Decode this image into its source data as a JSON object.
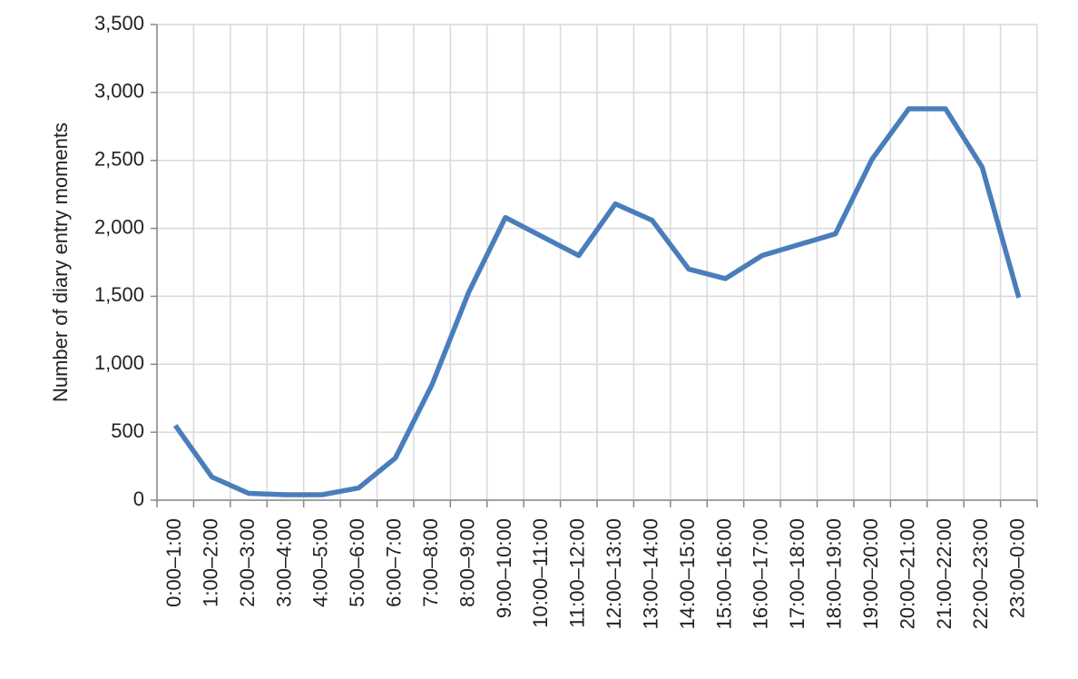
{
  "chart_data": {
    "type": "line",
    "y_label": "Number of diary entry moments",
    "categories": [
      "0:00–1:00",
      "1:00–2:00",
      "2:00–3:00",
      "3:00–4:00",
      "4:00–5:00",
      "5:00–6:00",
      "6:00–7:00",
      "7:00–8:00",
      "8:00–9:00",
      "9:00–10:00",
      "10:00–11:00",
      "11:00–12:00",
      "12:00–13:00",
      "13:00–14:00",
      "14:00–15:00",
      "15:00–16:00",
      "16:00–17:00",
      "17:00–18:00",
      "18:00–19:00",
      "19:00–20:00",
      "20:00–21:00",
      "21:00–22:00",
      "22:00–23:00",
      "23:00–0:00"
    ],
    "values": [
      550,
      170,
      50,
      40,
      40,
      90,
      310,
      850,
      1530,
      2080,
      1940,
      1800,
      2180,
      2060,
      1700,
      1630,
      1800,
      1880,
      1960,
      2510,
      2880,
      2880,
      2450,
      1490
    ],
    "color": "#4a7ebb",
    "ylim": [
      0,
      3500
    ],
    "yticks": [
      0,
      500,
      {
        "value": 1000,
        "label": "1,000"
      },
      {
        "value": 1500,
        "label": "1,500"
      },
      {
        "value": 2000,
        "label": "2,000"
      },
      {
        "value": 2500,
        "label": "2,500"
      },
      {
        "value": 3000,
        "label": "3,000"
      },
      {
        "value": 3500,
        "label": "3,500"
      }
    ],
    "grid": true
  }
}
